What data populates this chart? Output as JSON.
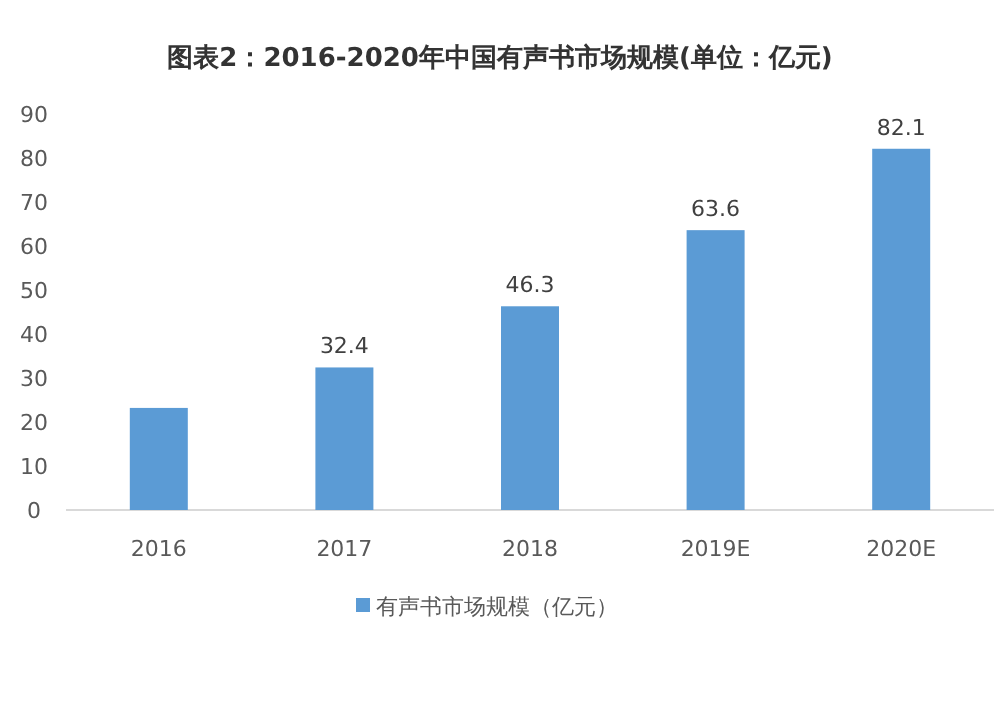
{
  "chart_data": {
    "type": "bar",
    "title": "图表2：2016-2020年中国有声书市场规模(单位：亿元)",
    "categories": [
      "2016",
      "2017",
      "2018",
      "2019E",
      "2020E"
    ],
    "series": [
      {
        "name": "有声书市场规模（亿元）",
        "color": "#5b9bd5",
        "values": [
          23.2,
          32.4,
          46.3,
          63.6,
          82.1
        ],
        "value_labels": [
          null,
          "32.4",
          "46.3",
          "63.6",
          "82.1"
        ]
      }
    ],
    "ylim": [
      0,
      90
    ],
    "yticks": [
      0,
      10,
      20,
      30,
      40,
      50,
      60,
      70,
      80,
      90
    ],
    "grid": false,
    "legend": "bottom"
  }
}
